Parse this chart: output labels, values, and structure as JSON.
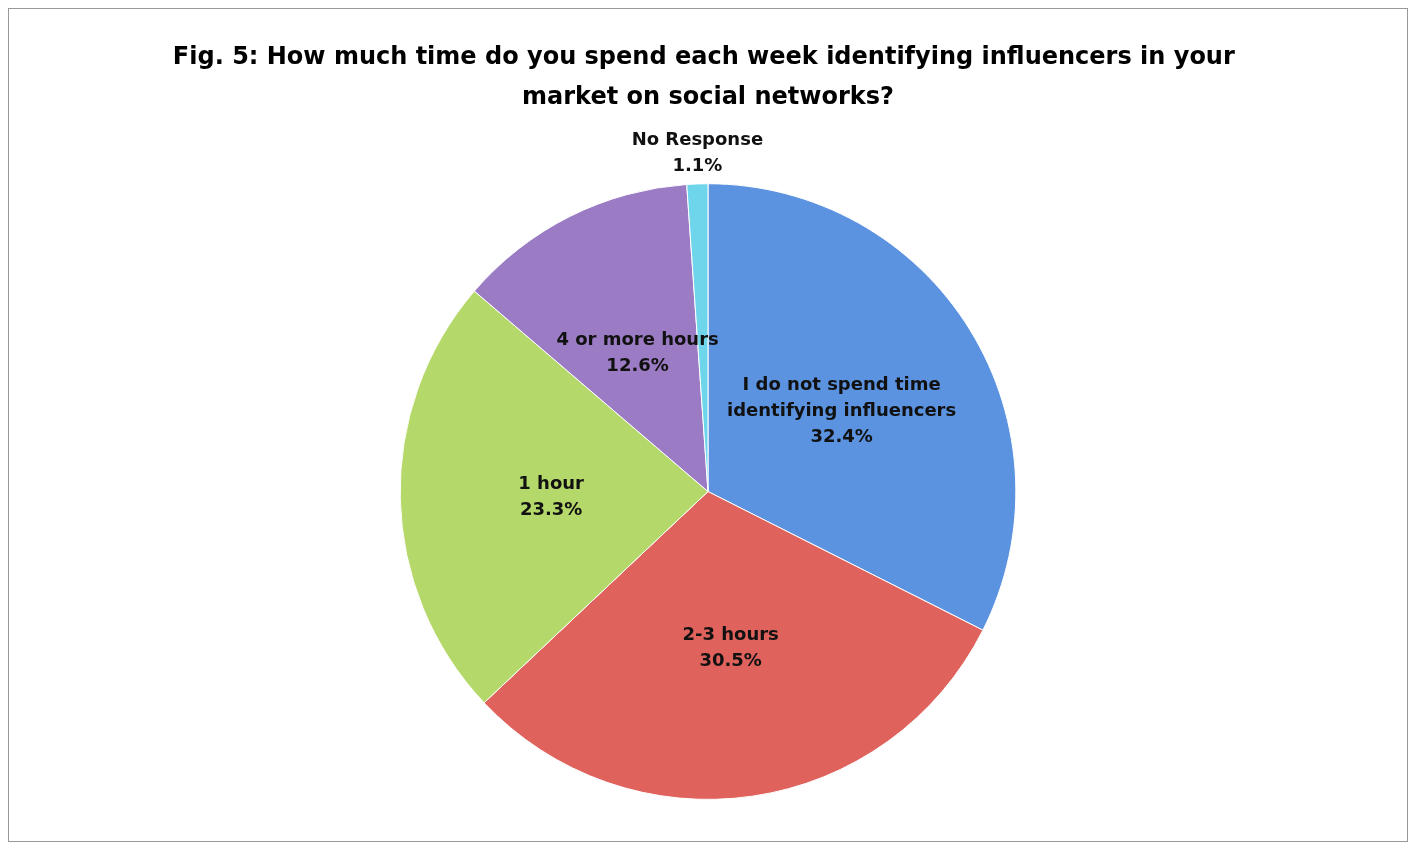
{
  "chart_data": {
    "type": "pie",
    "title": "Fig. 5: How much time do you spend each week identifying influencers in your market on social networks?",
    "categories": [
      "I do not spend time identifying influencers",
      "2-3 hours",
      "1 hour",
      "4 or more hours",
      "No Response"
    ],
    "values": [
      32.4,
      30.5,
      23.3,
      12.6,
      1.1
    ],
    "colors": [
      "#5b93e0",
      "#e0625c",
      "#b5d86a",
      "#9b7bc4",
      "#6fd5eb"
    ],
    "value_labels": [
      "32.4%",
      "30.5%",
      "23.3%",
      "12.6%",
      "1.1%"
    ]
  }
}
